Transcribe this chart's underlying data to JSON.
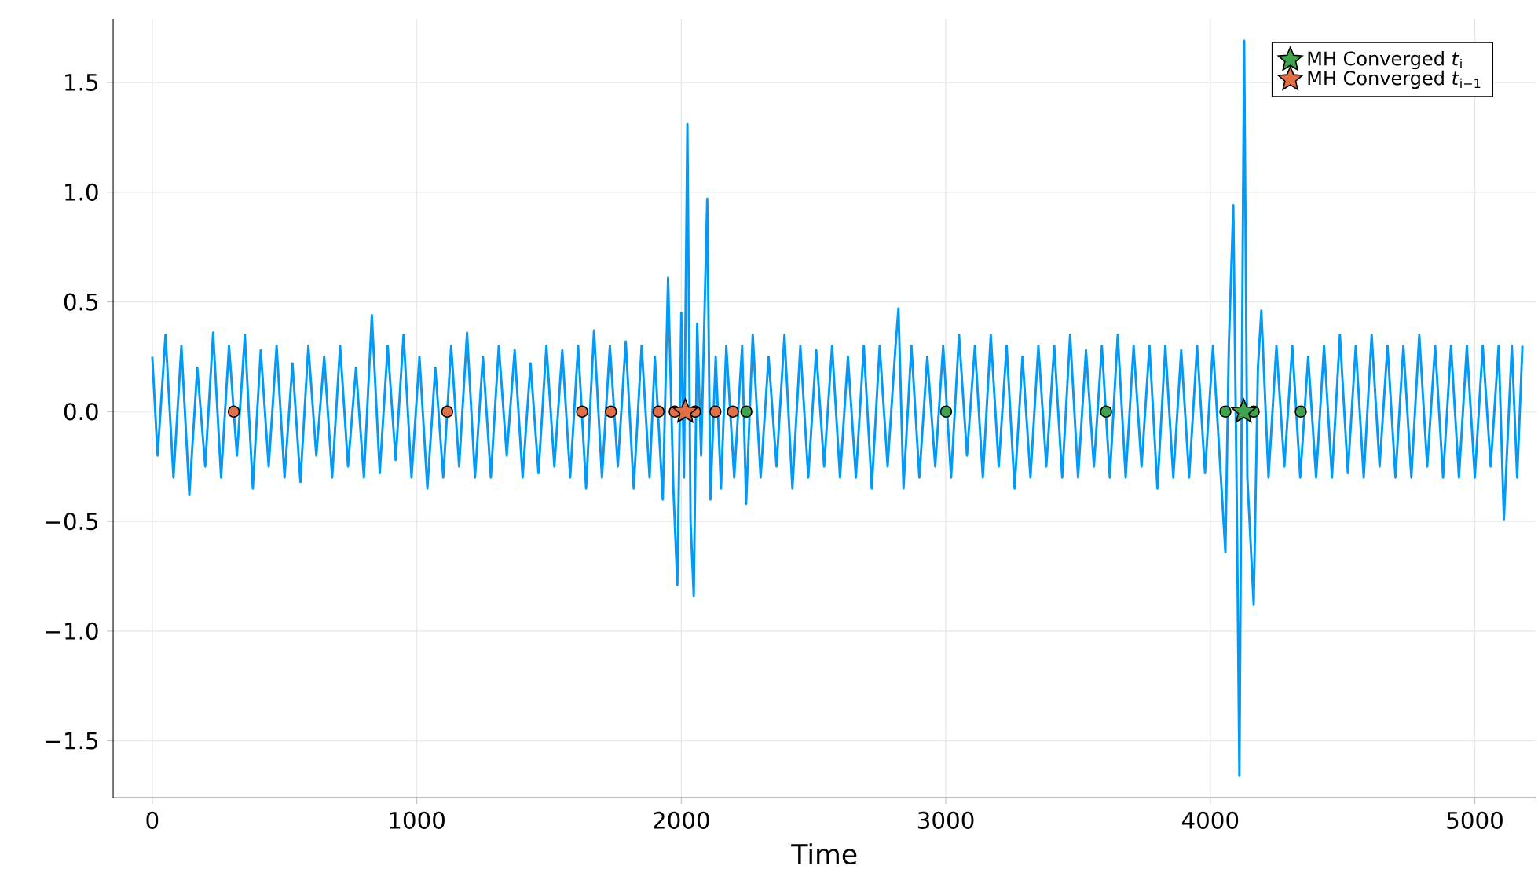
{
  "chart_data": {
    "type": "line",
    "xlabel": "Time",
    "xlim": [
      -148,
      5231
    ],
    "ylim": [
      -1.76,
      1.79
    ],
    "xticks": [
      0,
      1000,
      2000,
      3000,
      4000,
      5000
    ],
    "yticks": [
      {
        "value": -1.5,
        "label": "−1.5"
      },
      {
        "value": -1.0,
        "label": "−1.0"
      },
      {
        "value": -0.5,
        "label": "−0.5"
      },
      {
        "value": 0,
        "label": "0.0"
      },
      {
        "value": 0.5,
        "label": "0.5"
      },
      {
        "value": 1.0,
        "label": "1.0"
      },
      {
        "value": 1.5,
        "label": "1.5"
      }
    ],
    "grid": true,
    "legend": "top right",
    "series": [
      {
        "color": "#009af9",
        "x": [
          0,
          20,
          50,
          80,
          110,
          140,
          170,
          200,
          230,
          260,
          290,
          320,
          350,
          380,
          410,
          440,
          470,
          500,
          530,
          560,
          590,
          620,
          650,
          680,
          710,
          740,
          770,
          800,
          830,
          860,
          890,
          920,
          950,
          980,
          1010,
          1040,
          1070,
          1100,
          1130,
          1160,
          1190,
          1220,
          1250,
          1280,
          1310,
          1340,
          1370,
          1400,
          1430,
          1460,
          1490,
          1520,
          1550,
          1580,
          1610,
          1640,
          1670,
          1700,
          1730,
          1760,
          1790,
          1820,
          1850,
          1880,
          1900,
          1930,
          1950,
          1970,
          1985,
          2000,
          2010,
          2023,
          2035,
          2047,
          2060,
          2075,
          2098,
          2110,
          2130,
          2150,
          2170,
          2200,
          2230,
          2245,
          2270,
          2300,
          2330,
          2360,
          2390,
          2420,
          2450,
          2480,
          2510,
          2540,
          2570,
          2600,
          2630,
          2660,
          2690,
          2720,
          2750,
          2780,
          2810,
          2821,
          2840,
          2870,
          2900,
          2930,
          2960,
          2990,
          3020,
          3050,
          3080,
          3110,
          3140,
          3170,
          3200,
          3230,
          3260,
          3290,
          3320,
          3350,
          3380,
          3410,
          3440,
          3470,
          3500,
          3530,
          3560,
          3590,
          3620,
          3650,
          3680,
          3710,
          3740,
          3770,
          3800,
          3830,
          3860,
          3890,
          3920,
          3950,
          3980,
          4010,
          4040,
          4057,
          4070,
          4087,
          4100,
          4110,
          4120,
          4128,
          4140,
          4164,
          4180,
          4193,
          4220,
          4250,
          4280,
          4310,
          4340,
          4370,
          4400,
          4430,
          4460,
          4490,
          4520,
          4550,
          4580,
          4610,
          4640,
          4670,
          4700,
          4730,
          4760,
          4790,
          4820,
          4850,
          4880,
          4910,
          4940,
          4970,
          5000,
          5030,
          5060,
          5090,
          5110,
          5140,
          5160,
          5180
        ],
        "values": [
          0.25,
          -0.2,
          0.35,
          -0.3,
          0.3,
          -0.38,
          0.2,
          -0.25,
          0.36,
          -0.3,
          0.3,
          -0.2,
          0.35,
          -0.35,
          0.28,
          -0.25,
          0.3,
          -0.3,
          0.22,
          -0.32,
          0.3,
          -0.2,
          0.25,
          -0.3,
          0.3,
          -0.25,
          0.2,
          -0.3,
          0.44,
          -0.28,
          0.3,
          -0.22,
          0.35,
          -0.3,
          0.25,
          -0.35,
          0.2,
          -0.3,
          0.3,
          -0.25,
          0.36,
          -0.3,
          0.25,
          -0.3,
          0.3,
          -0.2,
          0.28,
          -0.3,
          0.22,
          -0.28,
          0.3,
          -0.25,
          0.28,
          -0.3,
          0.3,
          -0.35,
          0.37,
          -0.3,
          0.3,
          -0.25,
          0.32,
          -0.35,
          0.3,
          -0.3,
          0.25,
          -0.4,
          0.61,
          -0.35,
          -0.79,
          0.45,
          -0.3,
          1.31,
          -0.5,
          -0.84,
          0.4,
          -0.2,
          0.97,
          -0.4,
          0.25,
          -0.35,
          0.3,
          -0.3,
          0.3,
          -0.42,
          0.35,
          -0.3,
          0.25,
          -0.25,
          0.35,
          -0.35,
          0.3,
          -0.3,
          0.28,
          -0.25,
          0.3,
          -0.3,
          0.25,
          -0.3,
          0.3,
          -0.35,
          0.3,
          -0.25,
          0.3,
          0.47,
          -0.35,
          0.3,
          -0.3,
          0.25,
          -0.25,
          0.3,
          -0.3,
          0.35,
          -0.2,
          0.3,
          -0.3,
          0.35,
          -0.25,
          0.3,
          -0.35,
          0.25,
          -0.3,
          0.3,
          -0.25,
          0.3,
          -0.3,
          0.35,
          -0.3,
          0.28,
          -0.25,
          0.3,
          -0.3,
          0.35,
          -0.3,
          0.3,
          -0.25,
          0.3,
          -0.35,
          0.3,
          -0.3,
          0.28,
          -0.3,
          0.3,
          -0.28,
          0.3,
          -0.3,
          -0.64,
          0.3,
          0.94,
          -0.4,
          -1.66,
          0.3,
          1.69,
          -0.3,
          -0.88,
          0.2,
          0.46,
          -0.3,
          0.3,
          -0.25,
          0.3,
          -0.3,
          0.25,
          -0.3,
          0.3,
          -0.3,
          0.35,
          -0.28,
          0.3,
          -0.3,
          0.35,
          -0.25,
          0.3,
          -0.3,
          0.3,
          -0.3,
          0.35,
          -0.25,
          0.3,
          -0.3,
          0.3,
          -0.3,
          0.3,
          -0.3,
          0.3,
          -0.25,
          0.3,
          -0.49,
          0.3,
          -0.3,
          0.3
        ]
      },
      {
        "type": "scatter",
        "marker": "circle",
        "color": "#e26f46",
        "x": [
          308,
          1115,
          1625,
          1734,
          1914,
          1975,
          2052,
          2129,
          2195
        ],
        "values": [
          0,
          0,
          0,
          0,
          0,
          0,
          0,
          0,
          0
        ]
      },
      {
        "type": "scatter",
        "marker": "circle",
        "color": "#3da44d",
        "x": [
          2246,
          3001,
          3606,
          4057,
          4164,
          4342
        ],
        "values": [
          0,
          0,
          0,
          0,
          0,
          0
        ]
      },
      {
        "type": "scatter",
        "marker": "star",
        "name": "MH Converged *t*$_{i}$",
        "color": "#3da44d",
        "x": [
          4126
        ],
        "values": [
          0
        ]
      },
      {
        "type": "scatter",
        "marker": "star",
        "name": "MH Converged *t*$_{i−1}$",
        "color": "#e26f46",
        "x": [
          2015
        ],
        "values": [
          0
        ]
      }
    ]
  }
}
